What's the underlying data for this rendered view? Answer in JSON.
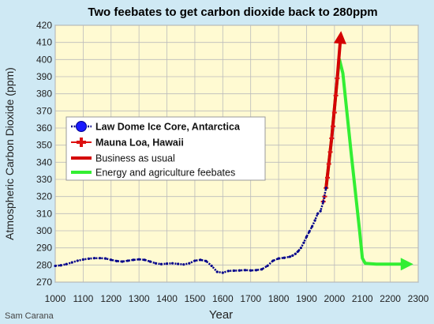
{
  "chart_data": {
    "type": "line",
    "title": "Two feebates to get carbon dioxide back to 280ppm",
    "xlabel": "Year",
    "ylabel": "Atmospheric Carbon Dioxide (ppm)",
    "xlim": [
      1000,
      2300
    ],
    "ylim": [
      270,
      420
    ],
    "x_ticks": [
      1000,
      1100,
      1200,
      1300,
      1400,
      1500,
      1600,
      1700,
      1800,
      1900,
      2000,
      2100,
      2200,
      2300
    ],
    "y_ticks": [
      270,
      280,
      290,
      300,
      310,
      320,
      330,
      340,
      350,
      360,
      370,
      380,
      390,
      400,
      410,
      420
    ],
    "grid": true,
    "legend_position": "left",
    "credit": "Sam Carana",
    "colors": {
      "plot_background": "#fffad2",
      "page_background": "#cfe9f4",
      "law_dome": "#00008b",
      "mauna_loa": "#dd1111",
      "business_as_usual": "#d40000",
      "feebates": "#33ee33",
      "grid": "#bbbbbb"
    },
    "series": [
      {
        "name": "Law Dome Ice Core, Antarctica",
        "style": "dotted-line-with-circle-markers",
        "x": [
          1000,
          1020,
          1040,
          1060,
          1080,
          1100,
          1120,
          1140,
          1160,
          1180,
          1200,
          1220,
          1240,
          1260,
          1280,
          1300,
          1320,
          1340,
          1360,
          1380,
          1400,
          1420,
          1440,
          1460,
          1480,
          1500,
          1520,
          1540,
          1560,
          1580,
          1600,
          1620,
          1640,
          1660,
          1680,
          1700,
          1720,
          1740,
          1760,
          1780,
          1800,
          1820,
          1840,
          1850,
          1860,
          1870,
          1880,
          1890,
          1900,
          1910,
          1920,
          1930,
          1940,
          1950,
          1960,
          1970
        ],
        "y": [
          279.5,
          279.8,
          280.5,
          281.5,
          282.5,
          283.2,
          283.7,
          284.0,
          284.0,
          283.8,
          283.0,
          282.3,
          282.0,
          282.5,
          283.0,
          283.3,
          283.0,
          282.0,
          281.0,
          280.5,
          280.8,
          281.0,
          280.6,
          280.3,
          281.0,
          282.5,
          283.0,
          282.3,
          279.5,
          276.0,
          275.5,
          276.5,
          276.7,
          276.8,
          277.0,
          276.8,
          277.0,
          277.5,
          279.5,
          282.5,
          283.8,
          284.2,
          284.8,
          285.5,
          286.5,
          288.0,
          290.0,
          293.0,
          296.5,
          299.5,
          302.5,
          306.0,
          310.0,
          311.5,
          317.0,
          325.0
        ]
      },
      {
        "name": "Mauna Loa, Hawaii",
        "style": "line-with-cross-markers",
        "x": [
          1960,
          1965,
          1970,
          1975,
          1980,
          1985,
          1990,
          1995,
          2000,
          2005,
          2010
        ],
        "y": [
          317,
          320,
          325,
          331,
          339,
          346,
          354,
          361,
          369,
          379,
          389
        ]
      },
      {
        "name": "Business as usual",
        "style": "thick-line-with-arrow",
        "x": [
          1970,
          1990,
          2010,
          2022
        ],
        "y": [
          325,
          354,
          389,
          413
        ]
      },
      {
        "name": "Energy and agriculture feebates",
        "style": "thick-line-with-arrow",
        "x": [
          1970,
          1990,
          2010,
          2018,
          2030,
          2060,
          2090,
          2100,
          2110,
          2150,
          2200,
          2260
        ],
        "y": [
          325,
          354,
          389,
          400,
          392,
          345,
          300,
          284,
          281,
          280.5,
          280.5,
          280.5
        ]
      }
    ]
  }
}
